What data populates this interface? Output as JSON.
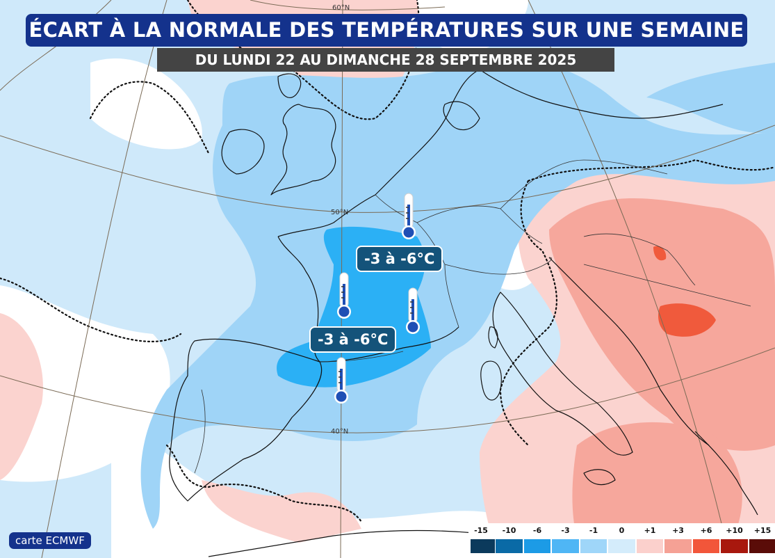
{
  "title": "ÉCART À LA NORMALE DES TEMPÉRATURES SUR UNE SEMAINE",
  "subtitle": "DU LUNDI 22 AU DIMANCHE 28 SEPTEMBRE 2025",
  "source": "carte ECMWF",
  "latitude_labels": [
    "60°N",
    "50°N",
    "40°N"
  ],
  "annotations": [
    {
      "text": "-3 à -6°C"
    },
    {
      "text": "-3 à -6°C"
    }
  ],
  "legend": {
    "ticks": [
      "-15",
      "-10",
      "-6",
      "-3",
      "-1",
      "0",
      "+1",
      "+3",
      "+6",
      "+10",
      "+15"
    ],
    "colors": [
      "#0b3a5c",
      "#0a6aa6",
      "#1c9be6",
      "#4fb6f5",
      "#9fd6f9",
      "#d4ecfb",
      "#fbd0cc",
      "#f5a195",
      "#f2563a",
      "#a8180e",
      "#5a0c08"
    ]
  },
  "colors": {
    "title_bg": "#14328c",
    "subtitle_bg": "#444444",
    "label_bg": "#14537a",
    "cold_strong": "#2bb0f5",
    "cold_mid": "#9fd4f7",
    "cold_light": "#cfe9fa",
    "neutral": "#ffffff",
    "warm_light": "#fbd3cf",
    "warm_mid": "#f6a79c",
    "warm_strong": "#f05a3c"
  }
}
